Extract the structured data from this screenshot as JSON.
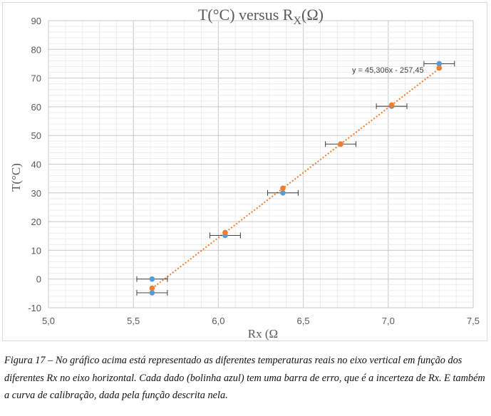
{
  "chart_data": {
    "type": "scatter",
    "title_main": "T(°C) versus R",
    "title_sub": "X",
    "title_end": "(Ω)",
    "xlabel": "Rx (Ω",
    "ylabel": "T(°C)",
    "xlim": [
      5.0,
      7.5
    ],
    "ylim": [
      -10,
      90
    ],
    "x_ticks": [
      "5,0",
      "5,5",
      "6,0",
      "6,5",
      "7,0",
      "7,5"
    ],
    "y_ticks": [
      "-10",
      "0",
      "10",
      "20",
      "30",
      "40",
      "50",
      "60",
      "70",
      "80",
      "90"
    ],
    "grid": true,
    "trendline_label": "y = 45,306x - 257,45",
    "trendline": {
      "slope": 45.306,
      "intercept": -257.45,
      "x_range": [
        5.61,
        7.3
      ]
    },
    "x_error": 0.09,
    "series": [
      {
        "color": "#5b9bd5",
        "points": [
          {
            "x": 5.61,
            "y": 0
          },
          {
            "x": 5.61,
            "y": -4.8
          },
          {
            "x": 6.04,
            "y": 15.2
          },
          {
            "x": 6.38,
            "y": 30.0
          },
          {
            "x": 6.72,
            "y": 47.0
          },
          {
            "x": 7.02,
            "y": 60.2
          },
          {
            "x": 7.3,
            "y": 75.0
          }
        ]
      },
      {
        "color": "#ed7d31",
        "points": [
          {
            "x": 5.61,
            "y": -3.2
          },
          {
            "x": 6.04,
            "y": 16.2
          },
          {
            "x": 6.38,
            "y": 31.6
          },
          {
            "x": 6.72,
            "y": 47.0
          },
          {
            "x": 7.02,
            "y": 60.6
          },
          {
            "x": 7.3,
            "y": 73.5
          }
        ]
      }
    ]
  },
  "caption": "Figura 17 – No gráfico acima está representado as diferentes temperaturas reais no eixo vertical em função dos diferentes Rx no eixo horizontal. Cada dado (bolinha azul) tem uma barra de erro, que é a incerteza de Rx. E também a curva de calibração, dada pela função descrita nela."
}
